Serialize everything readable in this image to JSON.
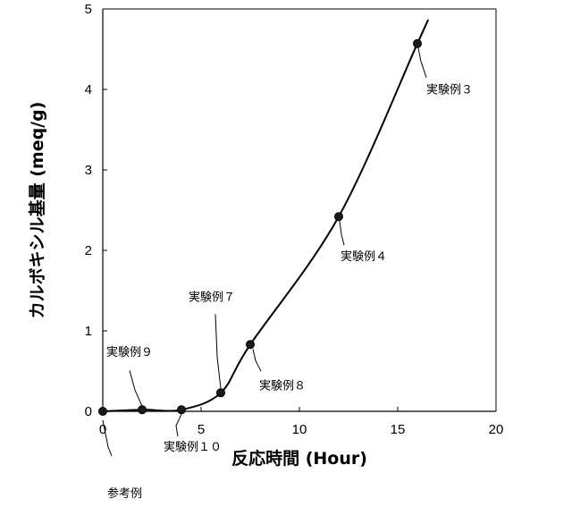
{
  "chart_data": {
    "type": "line",
    "title": "",
    "xlabel": "反応時間 (Hour)",
    "ylabel": "カルボキシル基量 (meq/g)",
    "xlim": [
      0,
      20
    ],
    "ylim": [
      0,
      5
    ],
    "x_ticks": [
      "0",
      "5",
      "10",
      "15",
      "20"
    ],
    "y_ticks": [
      "0",
      "1",
      "2",
      "3",
      "4",
      "5"
    ],
    "grid": false,
    "points": [
      {
        "x": 0,
        "y": 0.0,
        "label": "参考例"
      },
      {
        "x": 2,
        "y": 0.02,
        "label": "実験例９"
      },
      {
        "x": 4,
        "y": 0.02,
        "label": "実験例１０"
      },
      {
        "x": 6,
        "y": 0.23,
        "label": "実験例７"
      },
      {
        "x": 7.5,
        "y": 0.83,
        "label": "実験例８"
      },
      {
        "x": 12,
        "y": 2.42,
        "label": "実験例４"
      },
      {
        "x": 16,
        "y": 4.57,
        "label": "実験例３"
      }
    ]
  }
}
